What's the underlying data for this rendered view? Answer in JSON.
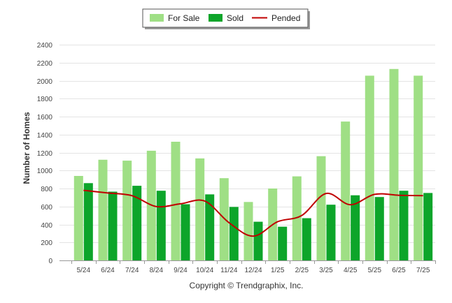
{
  "chart_data": {
    "type": "bar",
    "categories": [
      "5/24",
      "6/24",
      "7/24",
      "8/24",
      "9/24",
      "10/24",
      "11/24",
      "12/24",
      "1/25",
      "2/25",
      "3/25",
      "4/25",
      "5/25",
      "6/25",
      "7/25"
    ],
    "series": [
      {
        "name": "For Sale",
        "type": "bar",
        "color": "#9fdf85",
        "values": [
          940,
          1120,
          1110,
          1220,
          1320,
          1135,
          915,
          650,
          800,
          935,
          1160,
          1545,
          2055,
          2130,
          2055
        ]
      },
      {
        "name": "Sold",
        "type": "bar",
        "color": "#0da52a",
        "values": [
          860,
          765,
          830,
          775,
          625,
          735,
          595,
          430,
          375,
          470,
          620,
          725,
          705,
          775,
          750
        ]
      },
      {
        "name": "Pended",
        "type": "line",
        "color": "#c00000",
        "values": [
          780,
          750,
          720,
          600,
          630,
          660,
          420,
          270,
          430,
          500,
          745,
          620,
          735,
          725,
          720
        ]
      }
    ],
    "xlabel": "",
    "ylabel": "Number of Homes",
    "ylim": [
      0,
      2400
    ],
    "yticks": [
      0,
      200,
      400,
      600,
      800,
      1000,
      1200,
      1400,
      1600,
      1800,
      2000,
      2200,
      2400
    ],
    "grid": true,
    "legend_position": "top-center",
    "copyright": "Copyright © Trendgraphix, Inc."
  }
}
